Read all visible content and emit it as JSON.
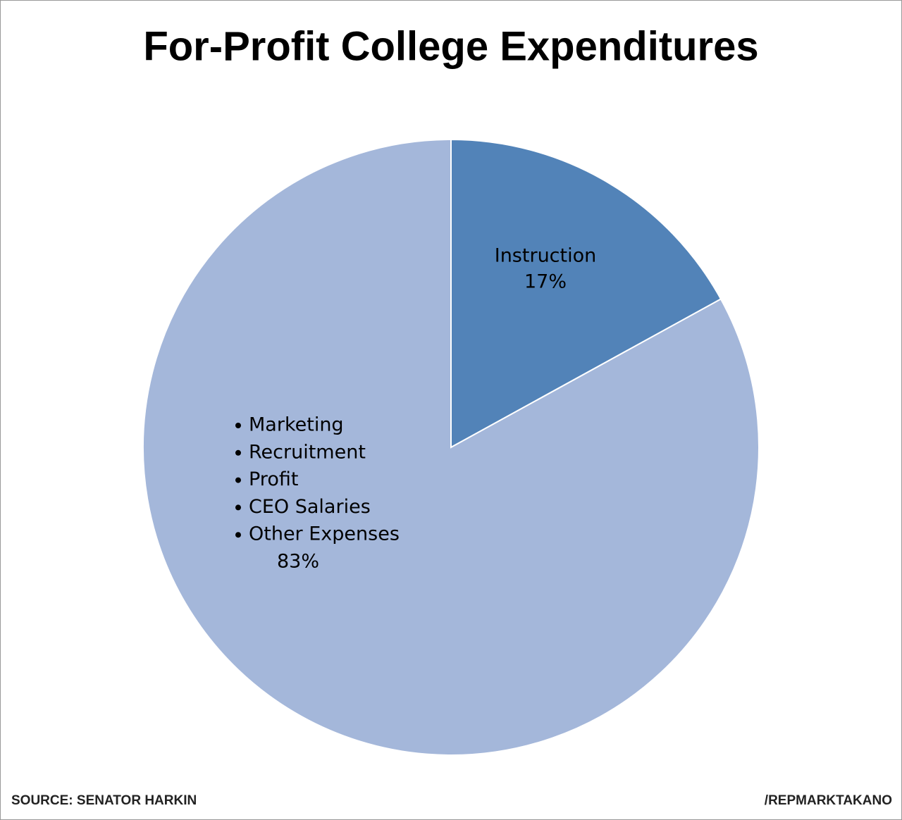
{
  "chart_data": {
    "type": "pie",
    "title": "For-Profit College Expenditures",
    "categories": [
      "Instruction",
      [
        "Marketing",
        "Recruitment",
        "Profit",
        "CEO Salaries",
        "Other Expenses"
      ]
    ],
    "values": [
      17,
      83
    ],
    "value_labels": [
      "17%",
      "83%"
    ],
    "colors": [
      "#5283b8",
      "#a4b7da"
    ],
    "source": "SOURCE: SENATOR HARKIN",
    "credit": "/REPMARKTAKANO"
  }
}
